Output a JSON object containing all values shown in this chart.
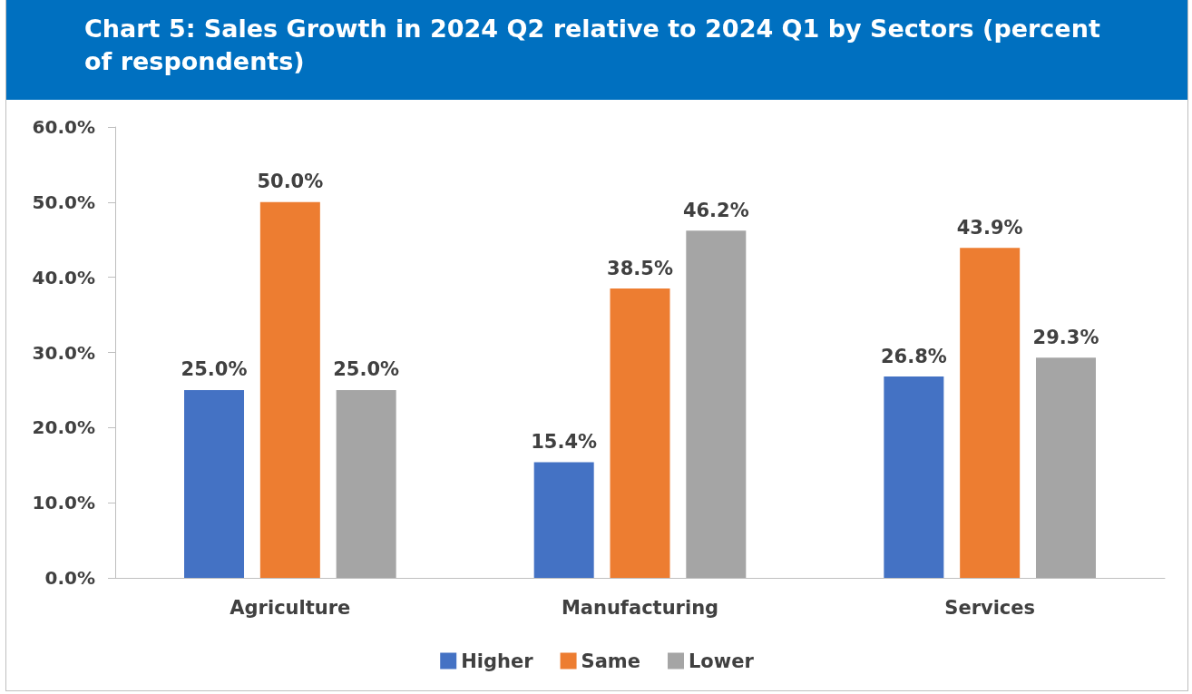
{
  "chart_data": {
    "type": "bar",
    "title": "Chart 5: Sales Growth in 2024 Q2 relative to 2024 Q1 by Sectors (percent of respondents)",
    "categories": [
      "Agriculture",
      "Manufacturing",
      "Services"
    ],
    "series": [
      {
        "name": "Higher",
        "color": "#4472c4",
        "values": [
          25.0,
          15.4,
          26.8
        ],
        "value_labels": [
          "25.0%",
          "15.4%",
          "26.8%"
        ]
      },
      {
        "name": "Same",
        "color": "#ed7d31",
        "values": [
          50.0,
          38.5,
          43.9
        ],
        "value_labels": [
          "50.0%",
          "38.5%",
          "43.9%"
        ]
      },
      {
        "name": "Lower",
        "color": "#a5a5a5",
        "values": [
          25.0,
          46.2,
          29.3
        ],
        "value_labels": [
          "25.0%",
          "46.2%",
          "29.3%"
        ]
      }
    ],
    "ylim": [
      0,
      60
    ],
    "yticks": [
      {
        "value": 0,
        "label": "0.0%"
      },
      {
        "value": 10,
        "label": "10.0%"
      },
      {
        "value": 20,
        "label": "20.0%"
      },
      {
        "value": 30,
        "label": "30.0%"
      },
      {
        "value": 40,
        "label": "40.0%"
      },
      {
        "value": 50,
        "label": "50.0%"
      },
      {
        "value": 60,
        "label": "60.0%"
      }
    ],
    "grid": false,
    "legend": "bottom"
  }
}
